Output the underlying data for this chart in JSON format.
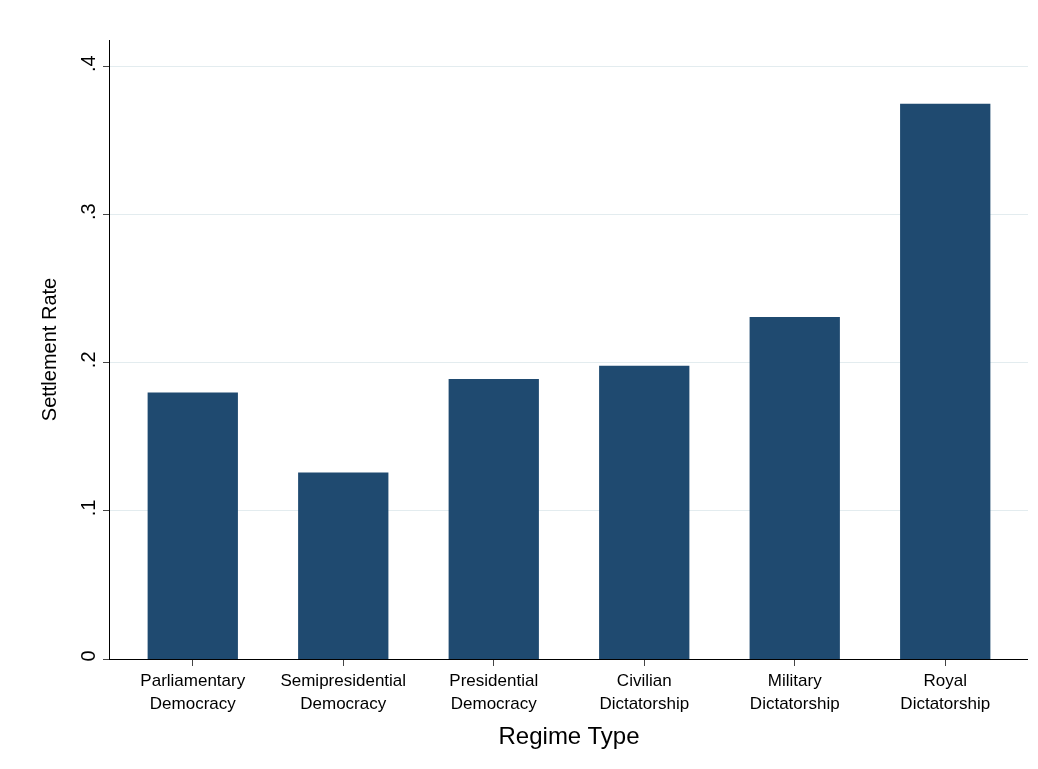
{
  "chart_data": {
    "type": "bar",
    "xlabel": "Regime Type",
    "ylabel": "Settlement Rate",
    "categories": [
      "Parliamentary Democracy",
      "Semipresidential Democracy",
      "Presidential Democracy",
      "Civilian Dictatorship",
      "Military Dictatorship",
      "Royal Dictatorship"
    ],
    "values": [
      0.18,
      0.126,
      0.189,
      0.198,
      0.231,
      0.375
    ],
    "color": "#1f4a70",
    "ylim": [
      0,
      0.418
    ],
    "yticks": [
      0,
      {
        "value": 0.1,
        "label": ".1"
      },
      {
        "value": 0.2,
        "label": ".2"
      },
      {
        "value": 0.3,
        "label": ".3"
      },
      {
        "value": 0.4,
        "label": ".4"
      }
    ],
    "grid": "y"
  }
}
